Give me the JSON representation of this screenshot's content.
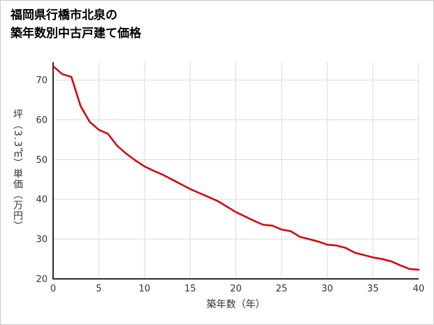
{
  "header": {
    "title_line1": "福岡県行橋市北泉の",
    "title_line2": "築年数別中古戸建て価格"
  },
  "chart_data": {
    "type": "line",
    "title": "福岡県行橋市北泉の築年数別中古戸建て価格",
    "xlabel": "築年数（年）",
    "ylabel": "坪（3.3㎡）単価（万円）",
    "xlim": [
      0,
      40
    ],
    "ylim": [
      20,
      74.5
    ],
    "x_ticks": [
      0,
      5,
      10,
      15,
      20,
      25,
      30,
      35,
      40
    ],
    "y_ticks": [
      20,
      30,
      40,
      50,
      60,
      70
    ],
    "grid": true,
    "legend": "none",
    "line_color": "#cf0a10",
    "grid_color": "#dcdcdc",
    "axis_color": "#2b2b2b",
    "text_color": "#333333",
    "series": [
      {
        "name": "坪単価（万円）",
        "x": [
          0,
          1,
          2,
          3,
          4,
          5,
          6,
          7,
          8,
          9,
          10,
          11,
          12,
          13,
          14,
          15,
          16,
          17,
          18,
          19,
          20,
          21,
          22,
          23,
          24,
          25,
          26,
          27,
          28,
          29,
          30,
          31,
          32,
          33,
          34,
          35,
          36,
          37,
          38,
          39,
          40
        ],
        "values": [
          73.5,
          71.5,
          70.8,
          63.5,
          59.5,
          57.5,
          56.5,
          53.5,
          51.5,
          49.8,
          48.3,
          47.2,
          46.2,
          45.0,
          43.8,
          42.6,
          41.6,
          40.6,
          39.6,
          38.2,
          36.8,
          35.7,
          34.6,
          33.6,
          33.4,
          32.4,
          32.0,
          30.6,
          30.0,
          29.4,
          28.6,
          28.4,
          27.8,
          26.6,
          26.0,
          25.4,
          25.0,
          24.4,
          23.4,
          22.5,
          22.3
        ]
      }
    ]
  }
}
